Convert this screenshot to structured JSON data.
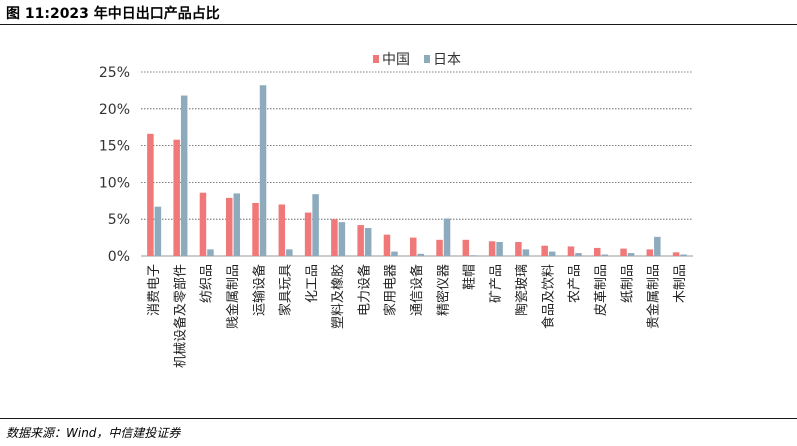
{
  "figure": {
    "title": "图 11:2023 年中日出口产品占比",
    "source": "数据来源：Wind，中信建投证券"
  },
  "chart_data": {
    "type": "bar",
    "categories": [
      "消费电子",
      "机械设备及零部件",
      "纺织品",
      "贱金属制品",
      "运输设备",
      "家具玩具",
      "化工品",
      "塑料及橡胶",
      "电力设备",
      "家用电器",
      "通信设备",
      "精密仪器",
      "鞋帽",
      "矿产品",
      "陶瓷玻璃",
      "食品及饮料",
      "农产品",
      "皮革制品",
      "纸制品",
      "贵金属制品",
      "木制品"
    ],
    "series": [
      {
        "name": "中国",
        "color": "#f07878",
        "values": [
          16.6,
          15.8,
          8.6,
          7.9,
          7.2,
          7.0,
          5.9,
          5.0,
          4.2,
          2.9,
          2.5,
          2.2,
          2.2,
          2.0,
          1.9,
          1.4,
          1.3,
          1.1,
          1.0,
          0.9,
          0.5
        ]
      },
      {
        "name": "日本",
        "color": "#8eaabd",
        "values": [
          6.7,
          21.8,
          0.9,
          8.5,
          23.2,
          0.9,
          8.4,
          4.6,
          3.8,
          0.6,
          0.3,
          5.1,
          0.1,
          1.9,
          0.9,
          0.6,
          0.4,
          0.2,
          0.4,
          2.6,
          0.2
        ]
      }
    ],
    "yticks": [
      "0%",
      "5%",
      "10%",
      "15%",
      "20%",
      "25%"
    ],
    "ylim": [
      0,
      25
    ],
    "grid": true,
    "legend_position": "top-center"
  }
}
